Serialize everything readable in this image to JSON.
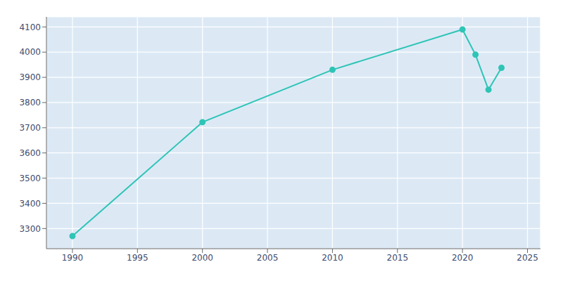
{
  "chart_data": {
    "type": "line",
    "x": [
      1990,
      2000,
      2010,
      2020,
      2021,
      2022,
      2023
    ],
    "values": [
      3270,
      3722,
      3930,
      4090,
      3990,
      3851,
      3938
    ],
    "color": "#2ec4b6",
    "marker": "circle",
    "xlim": [
      1988,
      2026
    ],
    "ylim": [
      3220,
      4140
    ],
    "xticks": [
      1990,
      1995,
      2000,
      2005,
      2010,
      2015,
      2020,
      2025
    ],
    "yticks": [
      3300,
      3400,
      3500,
      3600,
      3700,
      3800,
      3900,
      4000,
      4100
    ],
    "grid": true
  }
}
